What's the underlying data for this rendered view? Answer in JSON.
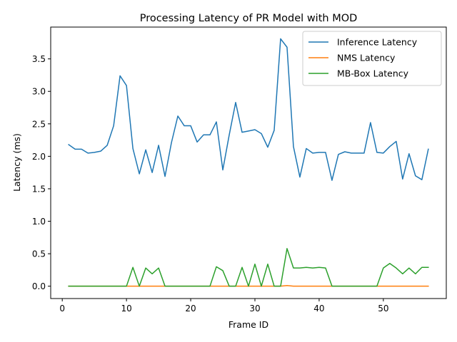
{
  "chart_data": {
    "type": "line",
    "title": "Processing Latency of PR Model with MOD",
    "xlabel": "Frame ID",
    "ylabel": "Latency (ms)",
    "xlim": [
      -1.8,
      59.8
    ],
    "ylim": [
      -0.19,
      3.99
    ],
    "xticks": [
      0,
      10,
      20,
      30,
      40,
      50
    ],
    "xtick_labels": [
      "0",
      "10",
      "20",
      "30",
      "40",
      "50"
    ],
    "yticks": [
      0.0,
      0.5,
      1.0,
      1.5,
      2.0,
      2.5,
      3.0,
      3.5
    ],
    "ytick_labels": [
      "0.0",
      "0.5",
      "1.0",
      "1.5",
      "2.0",
      "2.5",
      "3.0",
      "3.5"
    ],
    "grid": false,
    "legend_position": "top-right",
    "x": [
      1,
      2,
      3,
      4,
      5,
      6,
      7,
      8,
      9,
      10,
      11,
      12,
      13,
      14,
      15,
      16,
      17,
      18,
      19,
      20,
      21,
      22,
      23,
      24,
      25,
      26,
      27,
      28,
      29,
      30,
      31,
      32,
      33,
      34,
      35,
      36,
      37,
      38,
      39,
      40,
      41,
      42,
      43,
      44,
      45,
      46,
      47,
      48,
      49,
      50,
      51,
      52,
      53,
      54,
      55,
      56,
      57
    ],
    "series": [
      {
        "name": "Inference Latency",
        "color": "#1f77b4",
        "values": [
          2.18,
          2.11,
          2.11,
          2.05,
          2.06,
          2.08,
          2.17,
          2.47,
          3.24,
          3.09,
          2.12,
          1.73,
          2.1,
          1.75,
          2.17,
          1.69,
          2.21,
          2.62,
          2.47,
          2.47,
          2.22,
          2.33,
          2.33,
          2.53,
          1.79,
          2.33,
          2.83,
          2.37,
          2.39,
          2.41,
          2.35,
          2.14,
          2.4,
          3.81,
          3.68,
          2.15,
          1.68,
          2.12,
          2.05,
          2.06,
          2.06,
          1.63,
          2.03,
          2.07,
          2.05,
          2.05,
          2.05,
          2.52,
          2.06,
          2.05,
          2.15,
          2.23,
          1.65,
          2.04,
          1.7,
          1.64,
          2.11
        ]
      },
      {
        "name": "NMS Latency",
        "color": "#ff7f0e",
        "values": [
          0.0,
          0.0,
          0.0,
          0.0,
          0.0,
          0.0,
          0.0,
          0.0,
          0.0,
          0.0,
          0.0,
          0.0,
          0.0,
          0.0,
          0.0,
          0.0,
          0.0,
          0.0,
          0.0,
          0.0,
          0.0,
          0.0,
          0.0,
          0.0,
          0.0,
          0.0,
          0.0,
          0.0,
          0.0,
          0.0,
          0.0,
          0.0,
          0.0,
          0.0,
          0.01,
          0.0,
          0.0,
          0.0,
          0.0,
          0.0,
          0.0,
          0.0,
          0.0,
          0.0,
          0.0,
          0.0,
          0.0,
          0.0,
          0.0,
          0.0,
          0.0,
          0.0,
          0.0,
          0.0,
          0.0,
          0.0,
          0.0
        ]
      },
      {
        "name": "MB-Box Latency",
        "color": "#2ca02c",
        "values": [
          0.0,
          0.0,
          0.0,
          0.0,
          0.0,
          0.0,
          0.0,
          0.0,
          0.0,
          0.0,
          0.29,
          0.0,
          0.28,
          0.19,
          0.28,
          0.0,
          0.0,
          0.0,
          0.0,
          0.0,
          0.0,
          0.0,
          0.0,
          0.3,
          0.24,
          0.0,
          0.0,
          0.29,
          0.0,
          0.34,
          0.0,
          0.34,
          0.0,
          0.0,
          0.58,
          0.28,
          0.28,
          0.29,
          0.28,
          0.29,
          0.28,
          0.0,
          0.0,
          0.0,
          0.0,
          0.0,
          0.0,
          0.0,
          0.0,
          0.28,
          0.35,
          0.28,
          0.19,
          0.28,
          0.19,
          0.29,
          0.29
        ]
      }
    ]
  }
}
